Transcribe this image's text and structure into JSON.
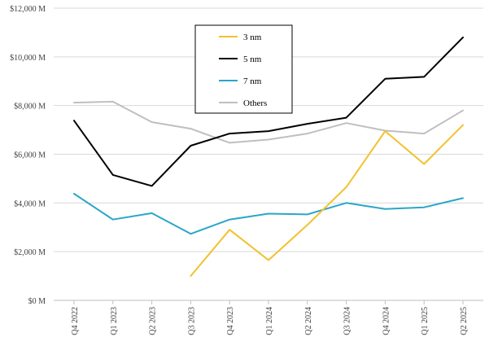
{
  "chart_data": {
    "type": "line",
    "title": "",
    "xlabel": "",
    "ylabel": "",
    "categories": [
      "Q4 2022",
      "Q1 2023",
      "Q2 2023",
      "Q3 2023",
      "Q4 2023",
      "Q1 2024",
      "Q2 2024",
      "Q3 2024",
      "Q4 2024",
      "Q1 2025",
      "Q2 2025"
    ],
    "ylim": [
      0,
      12000
    ],
    "yticks": [
      0,
      2000,
      4000,
      6000,
      8000,
      10000,
      12000
    ],
    "ytick_labels": [
      "$0 M",
      "$2,000 M",
      "$4,000 M",
      "$6,000 M",
      "$8,000 M",
      "$10,000 M",
      "$12,000 M"
    ],
    "grid": true,
    "legend_position": "top-center",
    "series": [
      {
        "name": "3 nm",
        "color": "#F2C12E",
        "values": [
          null,
          null,
          null,
          1000,
          2900,
          1650,
          3100,
          4650,
          6950,
          5600,
          7200
        ]
      },
      {
        "name": "5 nm",
        "color": "#000000",
        "values": [
          7380,
          5150,
          4700,
          6350,
          6850,
          6950,
          7250,
          7500,
          9100,
          9180,
          10800
        ]
      },
      {
        "name": "7 nm",
        "color": "#2AA6C8",
        "values": [
          4380,
          3320,
          3580,
          2730,
          3320,
          3560,
          3530,
          4000,
          3750,
          3820,
          4200
        ]
      },
      {
        "name": "Others",
        "color": "#BFBFBF",
        "values": [
          8120,
          8160,
          7320,
          7050,
          6470,
          6600,
          6850,
          7280,
          6970,
          6850,
          7800
        ]
      }
    ]
  }
}
